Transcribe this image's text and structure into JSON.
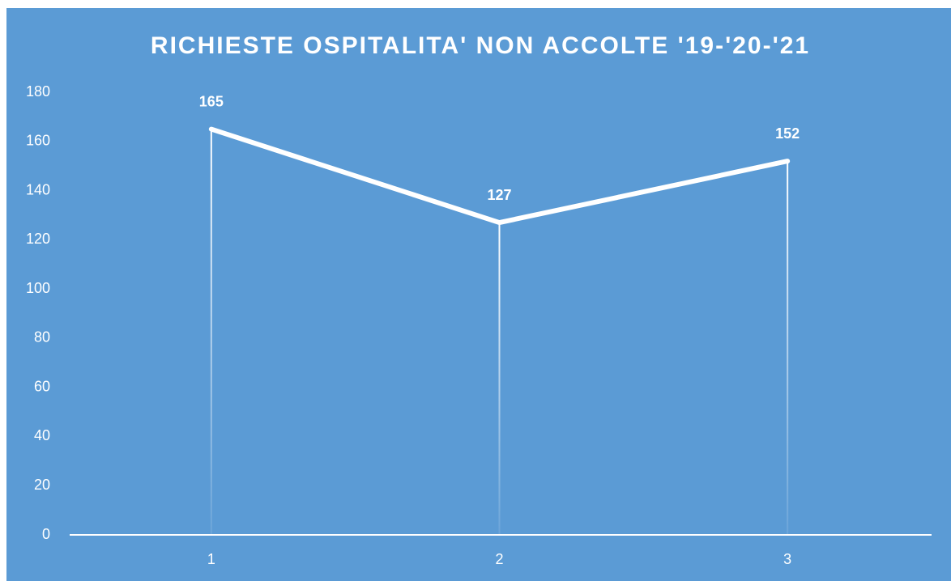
{
  "chart_data": {
    "type": "line",
    "title": "RICHIESTE OSPITALITA' NON ACCOLTE '19-'20-'21",
    "categories": [
      "1",
      "2",
      "3"
    ],
    "values": [
      165,
      127,
      152
    ],
    "color": "#ffffff",
    "ylim": [
      0,
      180
    ],
    "yticks": [
      0,
      20,
      40,
      60,
      80,
      100,
      120,
      140,
      160,
      180
    ],
    "grid": false
  }
}
